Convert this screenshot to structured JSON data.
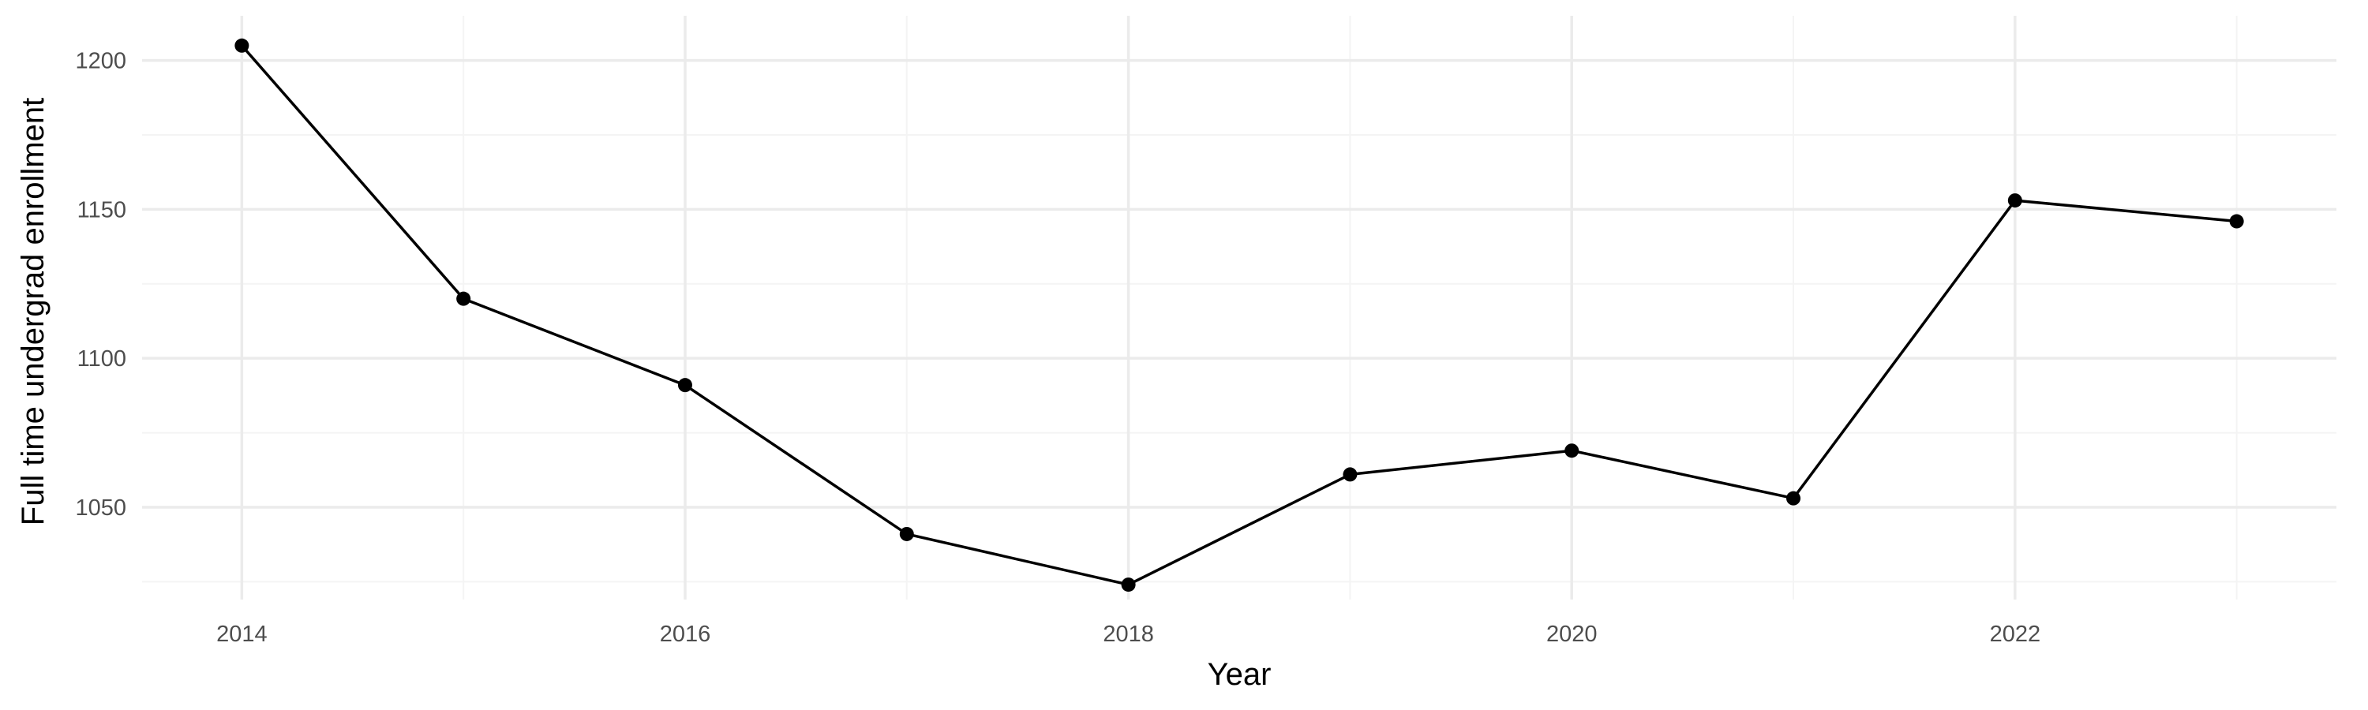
{
  "chart_data": {
    "type": "line",
    "xlabel": "Year",
    "ylabel": "Full time undergrad enrollment",
    "x": [
      2014,
      2015,
      2016,
      2017,
      2018,
      2019,
      2020,
      2021,
      2022,
      2023
    ],
    "series": [
      {
        "values": [
          1205,
          1120,
          1091,
          1041,
          1024,
          1061,
          1069,
          1053,
          1153,
          1146
        ]
      }
    ],
    "xlim": [
      2013.55,
      2023.45
    ],
    "ylim": [
      1019,
      1215
    ],
    "x_ticks": [
      2014,
      2016,
      2018,
      2020,
      2022
    ],
    "x_tick_labels": [
      "2014",
      "2016",
      "2018",
      "2020",
      "2022"
    ],
    "y_ticks": [
      1050,
      1100,
      1150,
      1200
    ],
    "y_tick_labels": [
      "1050",
      "1100",
      "1150",
      "1200"
    ],
    "x_minor_ticks": [
      2015,
      2017,
      2019,
      2021,
      2023
    ],
    "y_minor_ticks": [
      1025,
      1075,
      1125,
      1175
    ],
    "grid": true,
    "legend": "none",
    "colors": {
      "line": "#000000",
      "point": "#000000",
      "grid": "#ebebeb",
      "background": "#ffffff"
    }
  }
}
